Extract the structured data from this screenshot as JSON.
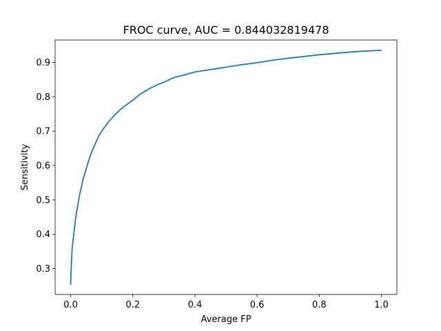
{
  "chart_data": {
    "type": "line",
    "title": "FROC curve, AUC = 0.844032819478",
    "xlabel": "Average FP",
    "ylabel": "Sensitivity",
    "xlim": [
      -0.05,
      1.05
    ],
    "ylim": [
      0.225,
      0.965
    ],
    "x_ticks": [
      0.0,
      0.2,
      0.4,
      0.6,
      0.8,
      1.0
    ],
    "x_tick_labels": [
      "0.0",
      "0.2",
      "0.4",
      "0.6",
      "0.8",
      "1.0"
    ],
    "y_ticks": [
      0.3,
      0.4,
      0.5,
      0.6,
      0.7,
      0.8,
      0.9
    ],
    "y_tick_labels": [
      "0.3",
      "0.4",
      "0.5",
      "0.6",
      "0.7",
      "0.8",
      "0.9"
    ],
    "grid": false,
    "legend": "none",
    "line_color": "#1f77b4",
    "series": [
      {
        "x": [
          0.0,
          0.002,
          0.005,
          0.01,
          0.015,
          0.02,
          0.03,
          0.04,
          0.05,
          0.06,
          0.07,
          0.08,
          0.09,
          0.1,
          0.12,
          0.14,
          0.16,
          0.18,
          0.2,
          0.22,
          0.25,
          0.28,
          0.3,
          0.33,
          0.36,
          0.4,
          0.45,
          0.5,
          0.55,
          0.6,
          0.65,
          0.7,
          0.75,
          0.8,
          0.85,
          0.9,
          0.95,
          1.0
        ],
        "y": [
          0.253,
          0.31,
          0.36,
          0.4,
          0.44,
          0.47,
          0.52,
          0.56,
          0.59,
          0.62,
          0.645,
          0.665,
          0.685,
          0.7,
          0.725,
          0.745,
          0.763,
          0.777,
          0.79,
          0.805,
          0.822,
          0.835,
          0.842,
          0.855,
          0.862,
          0.872,
          0.879,
          0.886,
          0.893,
          0.899,
          0.906,
          0.912,
          0.917,
          0.922,
          0.926,
          0.93,
          0.933,
          0.935
        ]
      }
    ]
  }
}
